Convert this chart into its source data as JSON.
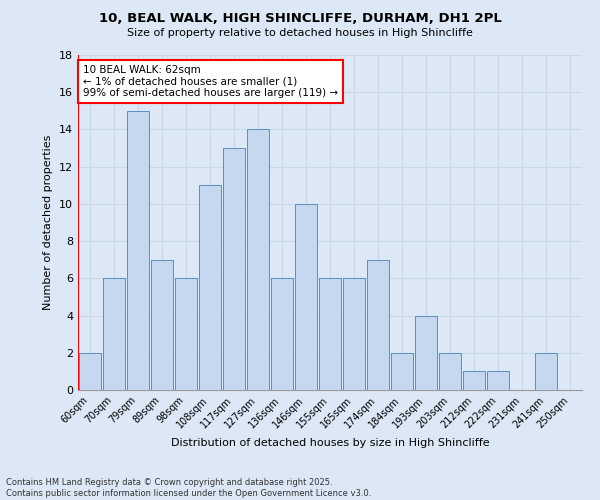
{
  "title_line1": "10, BEAL WALK, HIGH SHINCLIFFE, DURHAM, DH1 2PL",
  "title_line2": "Size of property relative to detached houses in High Shincliffe",
  "xlabel": "Distribution of detached houses by size in High Shincliffe",
  "ylabel": "Number of detached properties",
  "categories": [
    "60sqm",
    "70sqm",
    "79sqm",
    "89sqm",
    "98sqm",
    "108sqm",
    "117sqm",
    "127sqm",
    "136sqm",
    "146sqm",
    "155sqm",
    "165sqm",
    "174sqm",
    "184sqm",
    "193sqm",
    "203sqm",
    "212sqm",
    "222sqm",
    "231sqm",
    "241sqm",
    "250sqm"
  ],
  "values": [
    2,
    6,
    15,
    7,
    6,
    11,
    13,
    14,
    6,
    10,
    6,
    6,
    7,
    2,
    4,
    2,
    1,
    1,
    0,
    2,
    0
  ],
  "bar_color": "#c5d8f0",
  "bar_edge_color": "#5a8fc0",
  "annotation_text": "10 BEAL WALK: 62sqm\n← 1% of detached houses are smaller (1)\n99% of semi-detached houses are larger (119) →",
  "annotation_box_color": "white",
  "annotation_box_edge": "red",
  "ylim": [
    0,
    18
  ],
  "yticks": [
    0,
    2,
    4,
    6,
    8,
    10,
    12,
    14,
    16,
    18
  ],
  "grid_color": "#c8d8e8",
  "footer_text": "Contains HM Land Registry data © Crown copyright and database right 2025.\nContains public sector information licensed under the Open Government Licence v3.0.",
  "highlight_line_color": "red",
  "bg_color": "#dce8f5"
}
